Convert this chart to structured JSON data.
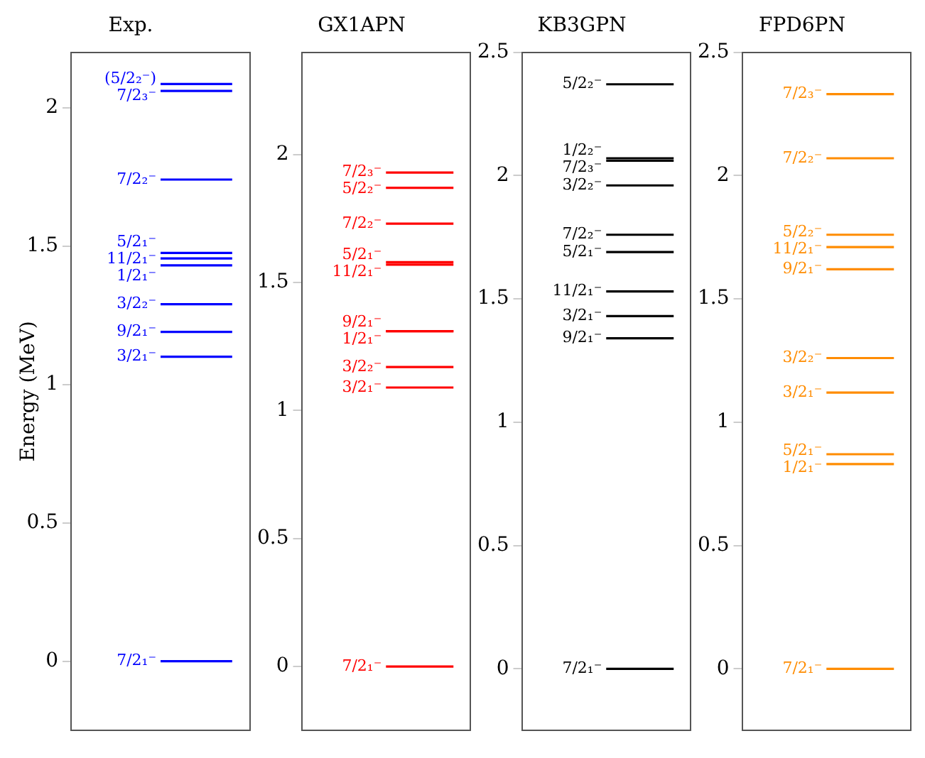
{
  "chart_data": [
    {
      "type": "line",
      "title": "Exp.",
      "ylabel": "Energy (MeV)",
      "categories": [
        null,
        null,
        null,
        null,
        null
      ],
      "ylim": [
        -0.25,
        2.2
      ],
      "yticks": [
        0,
        0.5,
        1,
        1.5,
        2
      ],
      "marker": "none",
      "legend": false,
      "series": [
        {
          "name": "7/2₁⁻",
          "color": "#0000ff",
          "values": [
            null,
            null,
            0,
            0,
            0
          ]
        },
        {
          "name": "3/2₁⁻",
          "color": "#0000ff",
          "values": [
            null,
            null,
            1.1,
            1.1,
            1.1
          ]
        },
        {
          "name": "9/2₁⁻",
          "color": "#0000ff",
          "values": [
            null,
            null,
            1.19,
            1.19,
            1.19
          ]
        },
        {
          "name": "3/2₂⁻",
          "color": "#0000ff",
          "values": [
            null,
            null,
            1.29,
            1.29,
            1.29
          ]
        },
        {
          "name": "1/2₁⁻",
          "color": "#0000ff",
          "values": [
            null,
            null,
            1.43,
            1.43,
            1.43
          ]
        },
        {
          "name": "11/2₁⁻",
          "color": "#0000ff",
          "values": [
            null,
            null,
            1.455,
            1.455,
            1.455
          ]
        },
        {
          "name": "5/2₁⁻",
          "color": "#0000ff",
          "values": [
            null,
            null,
            1.475,
            1.475,
            1.475
          ]
        },
        {
          "name": "7/2₂⁻",
          "color": "#0000ff",
          "values": [
            null,
            null,
            1.74,
            1.74,
            1.74
          ]
        },
        {
          "name": "7/2₃⁻",
          "color": "#0000ff",
          "values": [
            null,
            null,
            2.06,
            2.06,
            2.06
          ]
        },
        {
          "name": "(5/2₂⁻)",
          "color": "#0000ff",
          "values": [
            null,
            null,
            2.085,
            2.085,
            2.085
          ]
        }
      ]
    },
    {
      "type": "line",
      "title": "GX1APN",
      "categories": [
        null,
        null,
        null,
        null,
        null
      ],
      "ylim": [
        -0.25,
        2.4
      ],
      "yticks": [
        0,
        0.5,
        1,
        1.5,
        2
      ],
      "marker": "none",
      "legend": false,
      "series": [
        {
          "name": "7/2₁⁻",
          "color": "#ff0000",
          "values": [
            null,
            null,
            0,
            0,
            0
          ]
        },
        {
          "name": "3/2₁⁻",
          "color": "#ff0000",
          "values": [
            null,
            null,
            1.09,
            1.09,
            1.09
          ]
        },
        {
          "name": "3/2₂⁻",
          "color": "#ff0000",
          "values": [
            null,
            null,
            1.17,
            1.17,
            1.17
          ]
        },
        {
          "name": "1/2₁⁻",
          "color": "#ff0000",
          "values": [
            null,
            null,
            1.31,
            1.31,
            1.31
          ]
        },
        {
          "name": "9/2₁⁻",
          "color": "#ff0000",
          "values": [
            null,
            null,
            1.31,
            1.31,
            1.31
          ]
        },
        {
          "name": "11/2₁⁻",
          "color": "#ff0000",
          "values": [
            null,
            null,
            1.57,
            1.57,
            1.57
          ]
        },
        {
          "name": "5/2₁⁻",
          "color": "#ff0000",
          "values": [
            null,
            null,
            1.58,
            1.58,
            1.58
          ]
        },
        {
          "name": "7/2₂⁻",
          "color": "#ff0000",
          "values": [
            null,
            null,
            1.73,
            1.73,
            1.73
          ]
        },
        {
          "name": "5/2₂⁻",
          "color": "#ff0000",
          "values": [
            null,
            null,
            1.87,
            1.87,
            1.87
          ]
        },
        {
          "name": "7/2₃⁻",
          "color": "#ff0000",
          "values": [
            null,
            null,
            1.93,
            1.93,
            1.93
          ]
        }
      ]
    },
    {
      "type": "line",
      "title": "KB3GPN",
      "categories": [
        null,
        null,
        null,
        null,
        null
      ],
      "ylim": [
        -0.25,
        2.5
      ],
      "yticks": [
        0,
        0.5,
        1,
        1.5,
        2,
        2.5
      ],
      "marker": "none",
      "legend": false,
      "series": [
        {
          "name": "7/2₁⁻",
          "color": "#000000",
          "values": [
            null,
            null,
            0,
            0,
            0
          ]
        },
        {
          "name": "9/2₁⁻",
          "color": "#000000",
          "values": [
            null,
            null,
            1.34,
            1.34,
            1.34
          ]
        },
        {
          "name": "3/2₁⁻",
          "color": "#000000",
          "values": [
            null,
            null,
            1.43,
            1.43,
            1.43
          ]
        },
        {
          "name": "11/2₁⁻",
          "color": "#000000",
          "values": [
            null,
            null,
            1.53,
            1.53,
            1.53
          ]
        },
        {
          "name": "5/2₁⁻",
          "color": "#000000",
          "values": [
            null,
            null,
            1.69,
            1.69,
            1.69
          ]
        },
        {
          "name": "7/2₂⁻",
          "color": "#000000",
          "values": [
            null,
            null,
            1.76,
            1.76,
            1.76
          ]
        },
        {
          "name": "3/2₂⁻",
          "color": "#000000",
          "values": [
            null,
            null,
            1.96,
            1.96,
            1.96
          ]
        },
        {
          "name": "7/2₃⁻",
          "color": "#000000",
          "values": [
            null,
            null,
            2.06,
            2.06,
            2.06
          ]
        },
        {
          "name": "1/2₂⁻",
          "color": "#000000",
          "values": [
            null,
            null,
            2.07,
            2.07,
            2.07
          ]
        },
        {
          "name": "5/2₂⁻",
          "color": "#000000",
          "values": [
            null,
            null,
            2.37,
            2.37,
            2.37
          ]
        }
      ]
    },
    {
      "type": "line",
      "title": "FPD6PN",
      "categories": [
        null,
        null,
        null,
        null,
        null
      ],
      "ylim": [
        -0.25,
        2.5
      ],
      "yticks": [
        0,
        0.5,
        1,
        1.5,
        2,
        2.5
      ],
      "marker": "none",
      "legend": false,
      "series": [
        {
          "name": "7/2₁⁻",
          "color": "#ff8c00",
          "values": [
            null,
            null,
            0,
            0,
            0
          ]
        },
        {
          "name": "1/2₁⁻",
          "color": "#ff8c00",
          "values": [
            null,
            null,
            0.83,
            0.83,
            0.83
          ]
        },
        {
          "name": "5/2₁⁻",
          "color": "#ff8c00",
          "values": [
            null,
            null,
            0.87,
            0.87,
            0.87
          ]
        },
        {
          "name": "3/2₁⁻",
          "color": "#ff8c00",
          "values": [
            null,
            null,
            1.12,
            1.12,
            1.12
          ]
        },
        {
          "name": "3/2₂⁻",
          "color": "#ff8c00",
          "values": [
            null,
            null,
            1.26,
            1.26,
            1.26
          ]
        },
        {
          "name": "9/2₁⁻",
          "color": "#ff8c00",
          "values": [
            null,
            null,
            1.62,
            1.62,
            1.62
          ]
        },
        {
          "name": "11/2₁⁻",
          "color": "#ff8c00",
          "values": [
            null,
            null,
            1.71,
            1.71,
            1.71
          ]
        },
        {
          "name": "5/2₂⁻",
          "color": "#ff8c00",
          "values": [
            null,
            null,
            1.76,
            1.76,
            1.76
          ]
        },
        {
          "name": "7/2₂⁻",
          "color": "#ff8c00",
          "values": [
            null,
            null,
            2.07,
            2.07,
            2.07
          ]
        },
        {
          "name": "7/2₃⁻",
          "color": "#ff8c00",
          "values": [
            null,
            null,
            2.33,
            2.33,
            2.33
          ]
        }
      ]
    }
  ]
}
